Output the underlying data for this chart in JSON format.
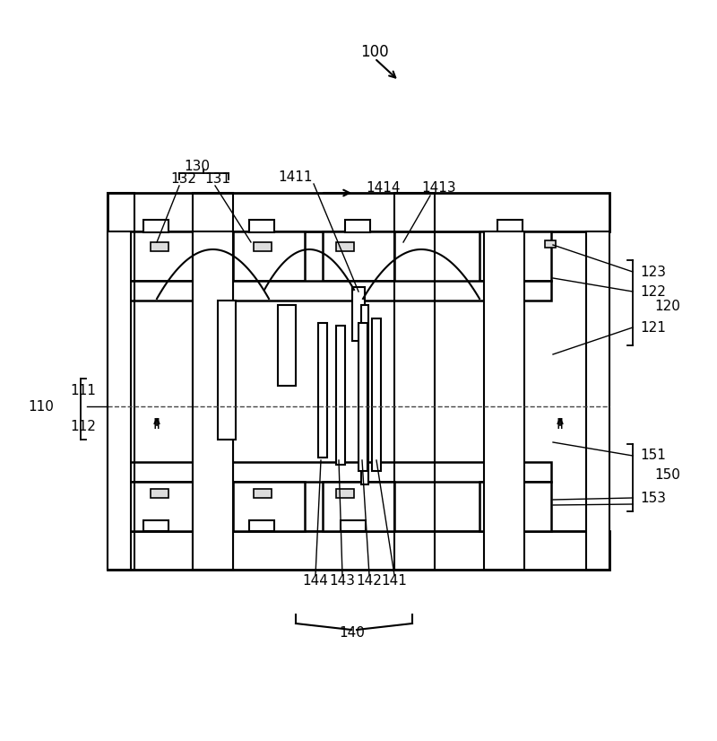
{
  "bg_color": "#ffffff",
  "line_color": "#000000",
  "fig_width": 8.0,
  "fig_height": 8.26
}
